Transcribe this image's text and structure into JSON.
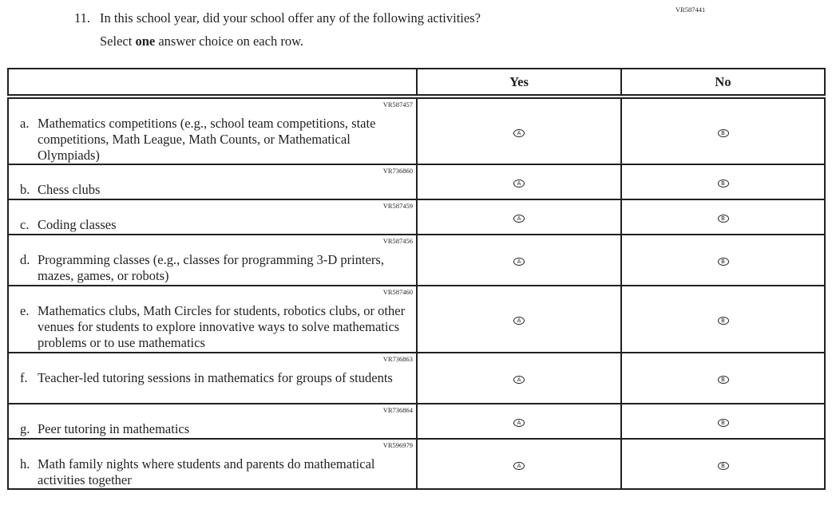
{
  "question": {
    "code": "VR587441",
    "number": "11.",
    "text": "In this school year, did your school offer any of the following activities?",
    "instruction_pre": "Select ",
    "instruction_bold": "one",
    "instruction_post": " answer choice on each row."
  },
  "columns": [
    "",
    "Yes",
    "No"
  ],
  "options": {
    "yes_letter": "A",
    "no_letter": "B"
  },
  "rows": [
    {
      "code": "VR587457",
      "letter": "a.",
      "text": "Mathematics competitions (e.g., school team competitions, state competitions, Math League, Math Counts, or Mathematical Olympiads)"
    },
    {
      "code": "VR736860",
      "letter": "b.",
      "text": "Chess clubs"
    },
    {
      "code": "VR587459",
      "letter": "c.",
      "text": "Coding classes"
    },
    {
      "code": "VR587456",
      "letter": "d.",
      "text": "Programming classes (e.g., classes for programming 3-D printers, mazes, games, or robots)"
    },
    {
      "code": "VR587460",
      "letter": "e.",
      "text": "Mathematics clubs, Math Circles for students, robotics clubs, or other venues for students to explore innovative ways to solve mathematics problems or to use mathematics"
    },
    {
      "code": "VR736863",
      "letter": "f.",
      "text": "Teacher-led tutoring sessions in mathematics for groups of students"
    },
    {
      "code": "VR736864",
      "letter": "g.",
      "text": "Peer tutoring in mathematics"
    },
    {
      "code": "VR596979",
      "letter": "h.",
      "text": "Math family nights where students and parents do mathematical activities together"
    }
  ]
}
